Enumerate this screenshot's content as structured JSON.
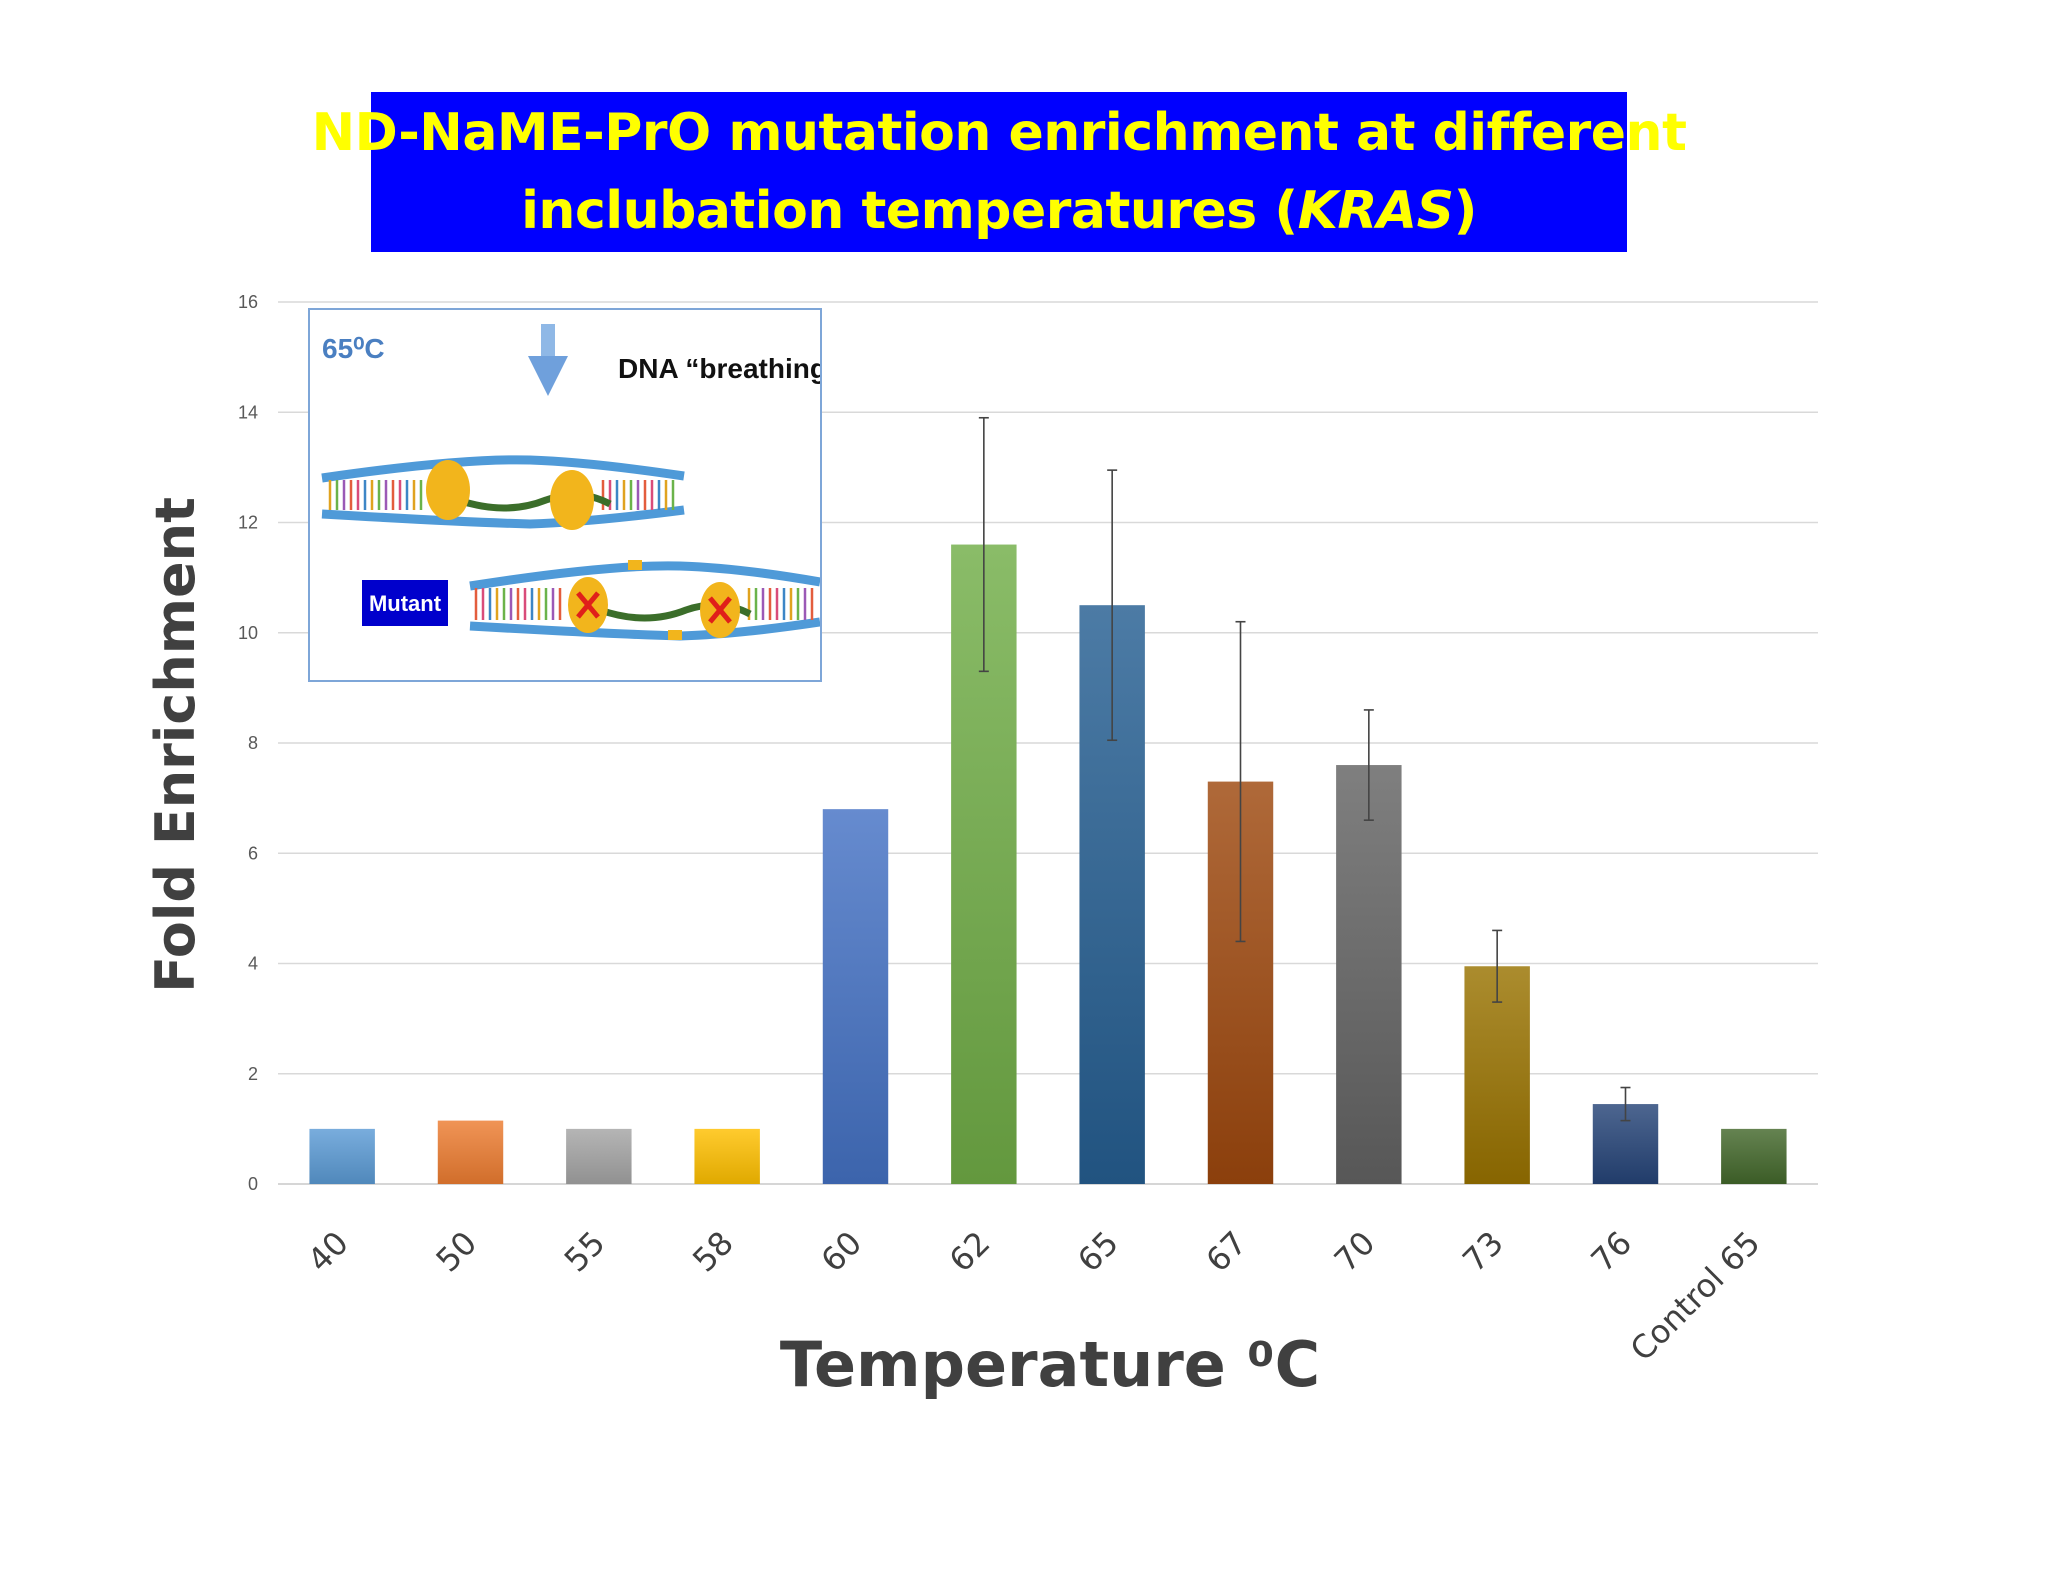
{
  "title": {
    "line1": "ND-NaME-PrO mutation enrichment at different",
    "line2_prefix": "inclubation temperatures (",
    "line2_italic": "KRAS",
    "line2_suffix": ")"
  },
  "inset": {
    "temperature_label": "65⁰C",
    "breathing_label": "DNA “breathing”",
    "mutant_label": "Mutant",
    "colors": {
      "border": "#7ea6d8",
      "temp": "#4a7fc1",
      "mutant_box": "#0000cc",
      "backbone": "#4f9ad8",
      "enzyme": "#f2b51c",
      "cross": "#e0201a"
    }
  },
  "chart_data": {
    "type": "bar",
    "ylabel": "Fold Enrichment",
    "xlabel": "Temperature ⁰C",
    "ylim": [
      0,
      16
    ],
    "yticks": [
      0,
      2,
      4,
      6,
      8,
      10,
      12,
      14,
      16
    ],
    "grid": true,
    "categories": [
      "40",
      "50",
      "55",
      "58",
      "60",
      "62",
      "65",
      "67",
      "70",
      "73",
      "76",
      "Control 65"
    ],
    "values": [
      1.0,
      1.15,
      1.0,
      1.0,
      6.8,
      11.6,
      10.5,
      7.3,
      7.6,
      3.95,
      1.45,
      1.0
    ],
    "errors": [
      null,
      null,
      null,
      null,
      null,
      2.3,
      2.45,
      2.9,
      1.0,
      0.65,
      0.3,
      null
    ],
    "colors": [
      "#5b9bd5",
      "#ed7d31",
      "#a5a5a5",
      "#ffc000",
      "#4472c4",
      "#70ad47",
      "#255e91",
      "#9e480e",
      "#636363",
      "#997300",
      "#264478",
      "#43682b"
    ]
  }
}
